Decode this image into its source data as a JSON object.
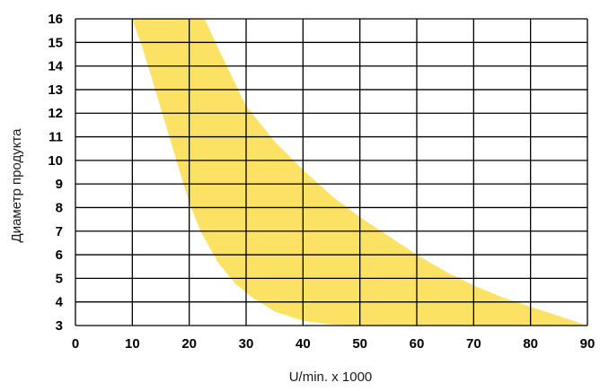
{
  "chart_data": {
    "type": "area",
    "xlabel": "U/min. x 1000",
    "ylabel": "Диаметр продукта",
    "xlim": [
      0,
      90
    ],
    "ylim": [
      3,
      16
    ],
    "x_ticks": [
      0,
      10,
      20,
      30,
      40,
      50,
      60,
      70,
      80,
      90
    ],
    "y_ticks": [
      3,
      4,
      5,
      6,
      7,
      8,
      9,
      10,
      11,
      12,
      13,
      14,
      15,
      16
    ],
    "grid": true,
    "fill_color": "#fbe265",
    "grid_color": "#000000",
    "band": {
      "upper": [
        {
          "x": 22.7,
          "y": 16
        },
        {
          "x": 25,
          "y": 14.8
        },
        {
          "x": 30,
          "y": 12.3
        },
        {
          "x": 35,
          "y": 10.8
        },
        {
          "x": 40,
          "y": 9.6
        },
        {
          "x": 45,
          "y": 8.5
        },
        {
          "x": 50,
          "y": 7.6
        },
        {
          "x": 55,
          "y": 6.8
        },
        {
          "x": 60,
          "y": 6.0
        },
        {
          "x": 65,
          "y": 5.3
        },
        {
          "x": 70,
          "y": 4.7
        },
        {
          "x": 75,
          "y": 4.2
        },
        {
          "x": 80,
          "y": 3.8
        },
        {
          "x": 85,
          "y": 3.4
        },
        {
          "x": 90,
          "y": 3.0
        }
      ],
      "lower": [
        {
          "x": 10,
          "y": 16
        },
        {
          "x": 12,
          "y": 14.6
        },
        {
          "x": 14,
          "y": 13.0
        },
        {
          "x": 16,
          "y": 11.4
        },
        {
          "x": 18,
          "y": 9.8
        },
        {
          "x": 20,
          "y": 8.2
        },
        {
          "x": 22,
          "y": 7.0
        },
        {
          "x": 25,
          "y": 5.7
        },
        {
          "x": 28,
          "y": 4.8
        },
        {
          "x": 31,
          "y": 4.2
        },
        {
          "x": 35,
          "y": 3.6
        },
        {
          "x": 40,
          "y": 3.2
        },
        {
          "x": 45,
          "y": 3.05
        },
        {
          "x": 50,
          "y": 3.0
        }
      ]
    }
  }
}
